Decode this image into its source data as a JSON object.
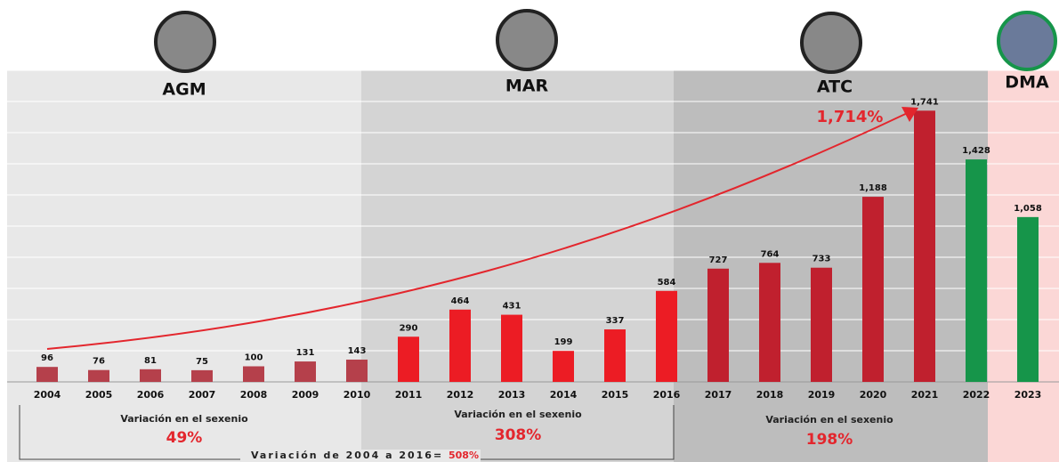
{
  "chart_data": {
    "type": "bar",
    "categories": [
      "2004",
      "2005",
      "2006",
      "2007",
      "2008",
      "2009",
      "2010",
      "2011",
      "2012",
      "2013",
      "2014",
      "2015",
      "2016",
      "2017",
      "2018",
      "2019",
      "2020",
      "2021",
      "2022",
      "2023"
    ],
    "values": [
      96,
      76,
      81,
      75,
      100,
      131,
      143,
      290,
      464,
      431,
      199,
      337,
      584,
      727,
      764,
      733,
      1188,
      1741,
      1428,
      1058
    ],
    "value_labels": [
      "96",
      "76",
      "81",
      "75",
      "100",
      "131",
      "143",
      "290",
      "464",
      "431",
      "199",
      "337",
      "584",
      "727",
      "764",
      "733",
      "1,188",
      "1,741",
      "1,428",
      "1,058"
    ],
    "colors": [
      "#b5404b",
      "#b5404b",
      "#b5404b",
      "#b5404b",
      "#b5404b",
      "#b5404b",
      "#b5404b",
      "#ec1c24",
      "#ec1c24",
      "#ec1c24",
      "#ec1c24",
      "#ec1c24",
      "#ec1c24",
      "#c0202e",
      "#c0202e",
      "#c0202e",
      "#c0202e",
      "#c0202e",
      "#16954a",
      "#16954a"
    ],
    "ylim": [
      0,
      2000
    ],
    "yticks": [
      0,
      200,
      400,
      600,
      800,
      1000,
      1200,
      1400,
      1600,
      1800,
      2000
    ],
    "grid": true,
    "periods": [
      {
        "name": "AGM",
        "change_title": "Variación en el sexenio",
        "change": "49%"
      },
      {
        "name": "MAR",
        "change_title": "Variación en el sexenio",
        "change": "308%"
      },
      {
        "name": "ATC",
        "change_title": "Variación en el sexenio",
        "change": "198%"
      },
      {
        "name": "DMA"
      }
    ],
    "trend_label": "1,714%",
    "total_change_text": "Variación de 2004 a 2016= ",
    "total_change": "508%"
  }
}
